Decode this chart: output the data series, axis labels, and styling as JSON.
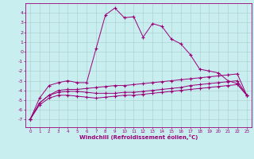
{
  "xlabel": "Windchill (Refroidissement éolien,°C)",
  "background_color": "#c8eef0",
  "line_color": "#990077",
  "grid_color": "#aacccc",
  "x_ticks": [
    0,
    1,
    2,
    3,
    4,
    5,
    6,
    7,
    8,
    9,
    10,
    11,
    12,
    13,
    14,
    15,
    16,
    17,
    18,
    19,
    20,
    21,
    22,
    23
  ],
  "y_ticks": [
    -7,
    -6,
    -5,
    -4,
    -3,
    -2,
    -1,
    0,
    1,
    2,
    3,
    4
  ],
  "ylim": [
    -7.8,
    5.0
  ],
  "xlim": [
    -0.5,
    23.5
  ],
  "line1_x": [
    0,
    1,
    2,
    3,
    4,
    5,
    6,
    7,
    8,
    9,
    10,
    11,
    12,
    13,
    14,
    15,
    16,
    17,
    18,
    19,
    20,
    21,
    22,
    23
  ],
  "line1_y": [
    -7.0,
    -4.8,
    -3.5,
    -3.2,
    -3.0,
    -3.2,
    -3.2,
    0.3,
    3.8,
    4.5,
    3.5,
    3.6,
    1.5,
    2.9,
    2.6,
    1.3,
    0.8,
    -0.3,
    -1.8,
    -2.0,
    -2.2,
    -3.0,
    -3.3,
    -4.5
  ],
  "line2_x": [
    0,
    1,
    2,
    3,
    4,
    5,
    6,
    7,
    8,
    9,
    10,
    11,
    12,
    13,
    14,
    15,
    16,
    17,
    18,
    19,
    20,
    21,
    22,
    23
  ],
  "line2_y": [
    -7.0,
    -5.3,
    -4.5,
    -4.0,
    -3.9,
    -3.9,
    -3.8,
    -3.7,
    -3.6,
    -3.5,
    -3.5,
    -3.4,
    -3.3,
    -3.2,
    -3.1,
    -3.0,
    -2.9,
    -2.8,
    -2.7,
    -2.6,
    -2.5,
    -2.4,
    -2.3,
    -4.5
  ],
  "line3_x": [
    0,
    1,
    2,
    3,
    4,
    5,
    6,
    7,
    8,
    9,
    10,
    11,
    12,
    13,
    14,
    15,
    16,
    17,
    18,
    19,
    20,
    21,
    22,
    23
  ],
  "line3_y": [
    -7.0,
    -5.3,
    -4.5,
    -4.2,
    -4.1,
    -4.1,
    -4.2,
    -4.3,
    -4.3,
    -4.3,
    -4.2,
    -4.2,
    -4.1,
    -4.0,
    -3.9,
    -3.8,
    -3.7,
    -3.5,
    -3.4,
    -3.3,
    -3.2,
    -3.1,
    -3.0,
    -4.5
  ],
  "line4_x": [
    0,
    1,
    2,
    3,
    4,
    5,
    6,
    7,
    8,
    9,
    10,
    11,
    12,
    13,
    14,
    15,
    16,
    17,
    18,
    19,
    20,
    21,
    22,
    23
  ],
  "line4_y": [
    -7.0,
    -5.5,
    -4.8,
    -4.5,
    -4.5,
    -4.6,
    -4.7,
    -4.8,
    -4.7,
    -4.6,
    -4.5,
    -4.5,
    -4.4,
    -4.3,
    -4.2,
    -4.1,
    -4.0,
    -3.9,
    -3.8,
    -3.7,
    -3.6,
    -3.5,
    -3.4,
    -4.5
  ]
}
